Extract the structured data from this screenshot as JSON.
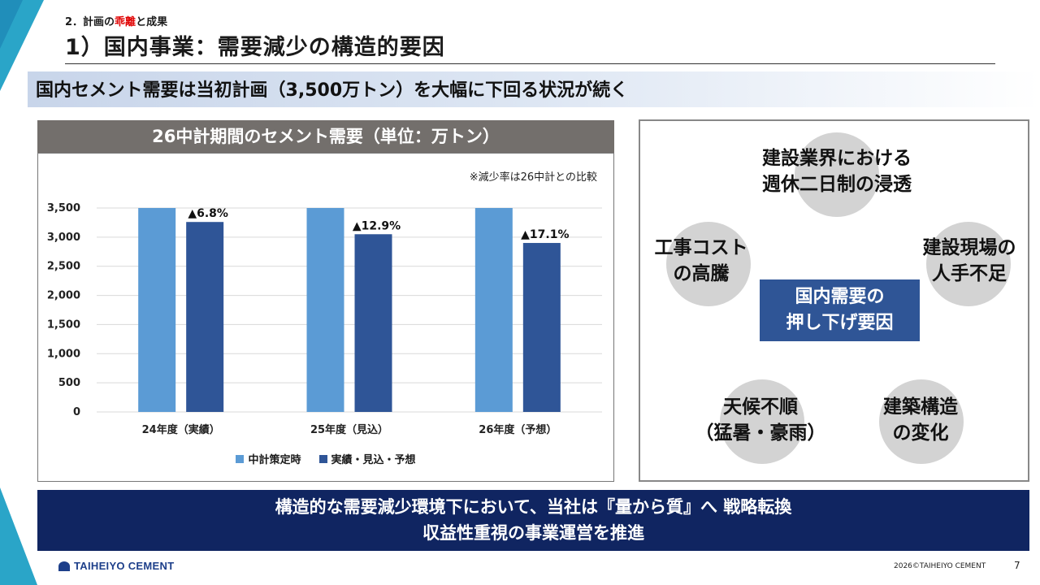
{
  "header": {
    "section_prefix": "2．計画の",
    "section_red": "乖離",
    "section_suffix": "と成果",
    "title": "1）国内事業：需要減少の構造的要因"
  },
  "subtitle": "国内セメント需要は当初計画（3,500万トン）を大幅に下回る状況が続く",
  "chart_panel": {
    "header": "26中計期間のセメント需要（単位：万トン）",
    "note": "※減少率は26中計との比較"
  },
  "chart_data": {
    "type": "bar",
    "categories": [
      "24年度（実績）",
      "25年度（見込）",
      "26年度（予想）"
    ],
    "series": [
      {
        "name": "中計策定時",
        "values": [
          3500,
          3500,
          3500
        ],
        "color": "#5b9bd5"
      },
      {
        "name": "実績・見込・予想",
        "values": [
          3260,
          3050,
          2900
        ],
        "color": "#2f5597"
      }
    ],
    "data_labels": [
      "▲6.8%",
      "▲12.9%",
      "▲17.1%"
    ],
    "yticks": [
      "3,500",
      "3,000",
      "2,500",
      "2,000",
      "1,500",
      "1,000",
      "500",
      "0"
    ],
    "ylim": [
      0,
      3500
    ],
    "grid": true,
    "legend_position": "bottom"
  },
  "factors": {
    "center": [
      "国内需要の",
      "押し下げ要因"
    ],
    "top": [
      "建設業界における",
      "週休二日制の浸透"
    ],
    "left": [
      "工事コスト",
      "の高騰"
    ],
    "right": [
      "建設現場の",
      "人手不足"
    ],
    "bottom_left": [
      "天候不順",
      "（猛暑・豪雨）"
    ],
    "bottom_right": [
      "建築構造",
      "の変化"
    ]
  },
  "conclusion": {
    "line1": "構造的な需要減少環境下において、当社は『量から質』へ 戦略転換",
    "line2": "収益性重視の事業運営を推進"
  },
  "footer": {
    "logo": "TAIHEIYO CEMENT",
    "copyright": "2026©TAIHEIYO CEMENT",
    "page": "7"
  }
}
